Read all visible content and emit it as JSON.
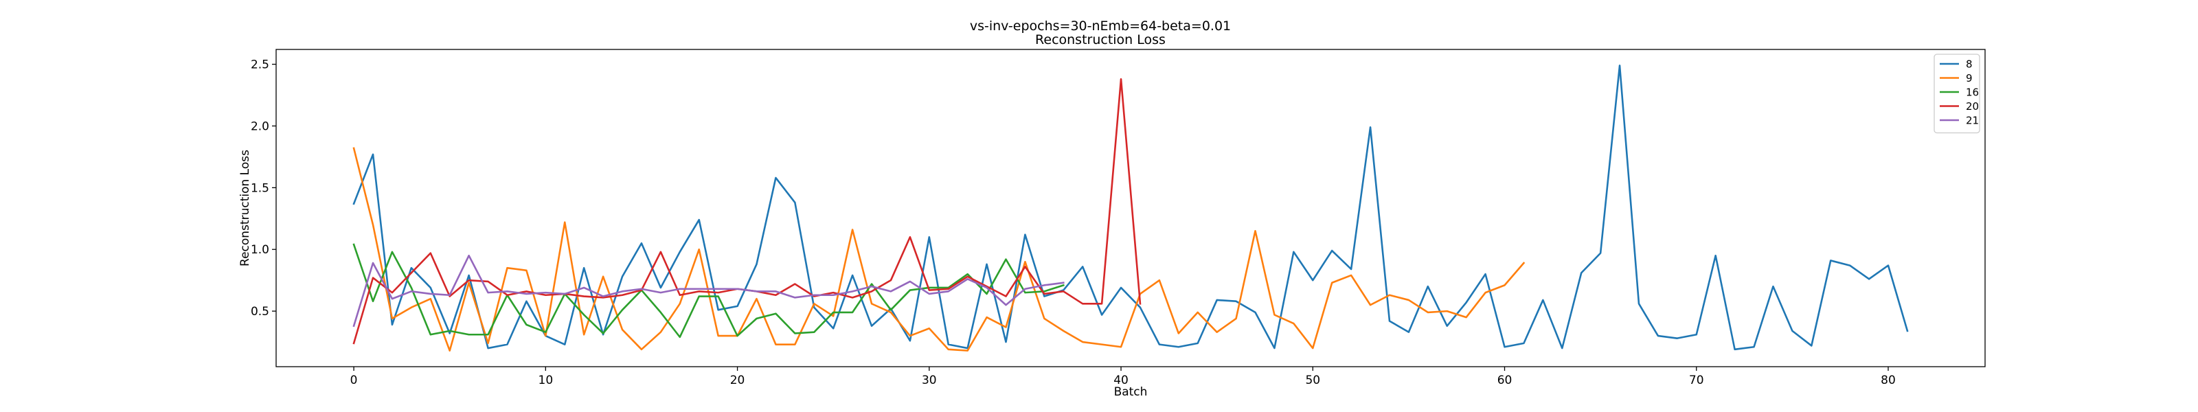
{
  "chart_data": {
    "type": "line",
    "title": "vs-inv-epochs=30-nEmb=64-beta=0.01",
    "subtitle": "Reconstruction Loss",
    "xlabel": "Batch",
    "ylabel": "Reconstruction Loss",
    "xlim": [
      -4.05,
      85.05
    ],
    "ylim": [
      0.05,
      2.62
    ],
    "x_ticks": [
      0,
      10,
      20,
      30,
      40,
      50,
      60,
      70,
      80
    ],
    "y_ticks": [
      0.5,
      1.0,
      1.5,
      2.0,
      2.5
    ],
    "grid": false,
    "legend_position": "top-right",
    "series": [
      {
        "name": "8",
        "color": "#1f77b4",
        "values": [
          1.37,
          1.77,
          0.39,
          0.85,
          0.69,
          0.32,
          0.79,
          0.2,
          0.23,
          0.58,
          0.3,
          0.23,
          0.85,
          0.31,
          0.78,
          1.05,
          0.69,
          0.98,
          1.24,
          0.51,
          0.54,
          0.88,
          1.58,
          1.38,
          0.53,
          0.36,
          0.79,
          0.38,
          0.52,
          0.26,
          1.1,
          0.23,
          0.2,
          0.88,
          0.25,
          1.12,
          0.62,
          0.67,
          0.86,
          0.47,
          0.69,
          0.53,
          0.23,
          0.21,
          0.24,
          0.59,
          0.58,
          0.49,
          0.2,
          0.98,
          0.75,
          0.99,
          0.84,
          1.99,
          0.42,
          0.33,
          0.7,
          0.38,
          0.57,
          0.8,
          0.21,
          0.24,
          0.59,
          0.2,
          0.81,
          0.97,
          2.49,
          0.56,
          0.3,
          0.28,
          0.31,
          0.95,
          0.19,
          0.21,
          0.7,
          0.34,
          0.22,
          0.91,
          0.87,
          0.76,
          0.87,
          0.34
        ]
      },
      {
        "name": "9",
        "color": "#ff7f0e",
        "values": [
          1.82,
          1.2,
          0.44,
          0.53,
          0.6,
          0.18,
          0.73,
          0.24,
          0.85,
          0.83,
          0.3,
          1.22,
          0.31,
          0.78,
          0.35,
          0.19,
          0.33,
          0.56,
          1.0,
          0.3,
          0.3,
          0.6,
          0.23,
          0.23,
          0.56,
          0.46,
          1.16,
          0.56,
          0.49,
          0.3,
          0.36,
          0.19,
          0.18,
          0.45,
          0.37,
          0.9,
          0.44,
          0.34,
          0.25,
          0.23,
          0.21,
          0.64,
          0.75,
          0.32,
          0.49,
          0.33,
          0.44,
          1.15,
          0.47,
          0.4,
          0.2,
          0.73,
          0.79,
          0.55,
          0.63,
          0.59,
          0.49,
          0.5,
          0.45,
          0.65,
          0.71,
          0.89
        ]
      },
      {
        "name": "16",
        "color": "#2ca02c",
        "values": [
          1.04,
          0.58,
          0.98,
          0.69,
          0.31,
          0.34,
          0.31,
          0.31,
          0.63,
          0.39,
          0.33,
          0.64,
          0.47,
          0.32,
          0.51,
          0.67,
          0.49,
          0.29,
          0.62,
          0.62,
          0.3,
          0.44,
          0.48,
          0.32,
          0.33,
          0.49,
          0.49,
          0.72,
          0.51,
          0.67,
          0.69,
          0.69,
          0.8,
          0.64,
          0.92,
          0.65,
          0.66,
          0.71
        ]
      },
      {
        "name": "20",
        "color": "#d62728",
        "values": [
          0.24,
          0.77,
          0.65,
          0.81,
          0.97,
          0.62,
          0.75,
          0.74,
          0.63,
          0.66,
          0.63,
          0.64,
          0.62,
          0.61,
          0.63,
          0.67,
          0.98,
          0.63,
          0.66,
          0.65,
          0.68,
          0.66,
          0.63,
          0.72,
          0.62,
          0.65,
          0.61,
          0.66,
          0.75,
          1.1,
          0.67,
          0.68,
          0.78,
          0.7,
          0.62,
          0.86,
          0.64,
          0.66,
          0.56,
          0.56,
          2.38,
          0.56
        ]
      },
      {
        "name": "21",
        "color": "#9467bd",
        "values": [
          0.38,
          0.89,
          0.6,
          0.66,
          0.64,
          0.63,
          0.95,
          0.65,
          0.66,
          0.64,
          0.65,
          0.64,
          0.69,
          0.62,
          0.66,
          0.68,
          0.65,
          0.68,
          0.68,
          0.68,
          0.68,
          0.66,
          0.66,
          0.61,
          0.63,
          0.63,
          0.66,
          0.7,
          0.66,
          0.74,
          0.64,
          0.66,
          0.76,
          0.69,
          0.55,
          0.68,
          0.71,
          0.73
        ]
      }
    ]
  }
}
